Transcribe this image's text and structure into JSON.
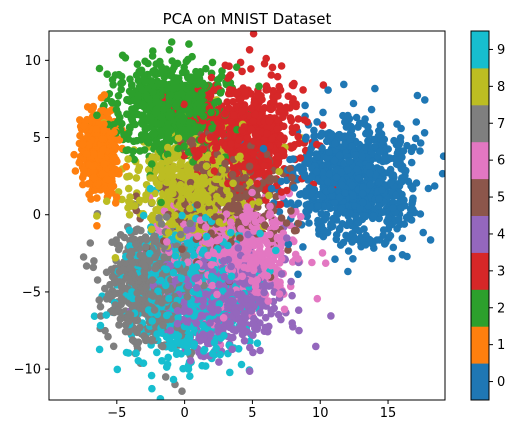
{
  "chart_data": {
    "type": "scatter",
    "title": "PCA on MNIST Dataset",
    "xlabel": "",
    "ylabel": "",
    "xlim": [
      -10,
      19.2
    ],
    "ylim": [
      -12,
      11.9
    ],
    "xticks": [
      -5,
      0,
      5,
      10,
      15
    ],
    "yticks": [
      -10,
      -5,
      0,
      5,
      10
    ],
    "grid": false,
    "colormap": "tab10",
    "colorbar": {
      "range": [
        0,
        9
      ],
      "ticks": [
        0,
        1,
        2,
        3,
        4,
        5,
        6,
        7,
        8,
        9
      ],
      "colors": [
        "#1f77b4",
        "#ff7f0e",
        "#2ca02c",
        "#d62728",
        "#9467bd",
        "#8c564b",
        "#e377c2",
        "#7f7f7f",
        "#bcbd22",
        "#17becf"
      ]
    },
    "clusters": [
      {
        "label": 0,
        "approx_center": [
          12.5,
          2.0
        ],
        "approx_spread": [
          2.8,
          2.6
        ],
        "approx_points": 900
      },
      {
        "label": 1,
        "approx_center": [
          -6.3,
          4.2
        ],
        "approx_spread": [
          0.8,
          1.6
        ],
        "approx_points": 700
      },
      {
        "label": 2,
        "approx_center": [
          -1.0,
          6.8
        ],
        "approx_spread": [
          2.6,
          2.0
        ],
        "approx_points": 700
      },
      {
        "label": 3,
        "approx_center": [
          4.5,
          5.2
        ],
        "approx_spread": [
          2.6,
          2.3
        ],
        "approx_points": 700
      },
      {
        "label": 4,
        "approx_center": [
          2.5,
          -5.5
        ],
        "approx_spread": [
          2.8,
          2.2
        ],
        "approx_points": 650
      },
      {
        "label": 5,
        "approx_center": [
          3.0,
          1.0
        ],
        "approx_spread": [
          2.8,
          2.6
        ],
        "approx_points": 500
      },
      {
        "label": 6,
        "approx_center": [
          3.5,
          -2.5
        ],
        "approx_spread": [
          3.0,
          2.2
        ],
        "approx_points": 650
      },
      {
        "label": 7,
        "approx_center": [
          -2.5,
          -4.5
        ],
        "approx_spread": [
          2.2,
          2.5
        ],
        "approx_points": 700
      },
      {
        "label": 8,
        "approx_center": [
          0.5,
          1.5
        ],
        "approx_spread": [
          2.8,
          2.2
        ],
        "approx_points": 650
      },
      {
        "label": 9,
        "approx_center": [
          0.0,
          -5.0
        ],
        "approx_spread": [
          3.0,
          3.0
        ],
        "approx_points": 700
      }
    ]
  }
}
